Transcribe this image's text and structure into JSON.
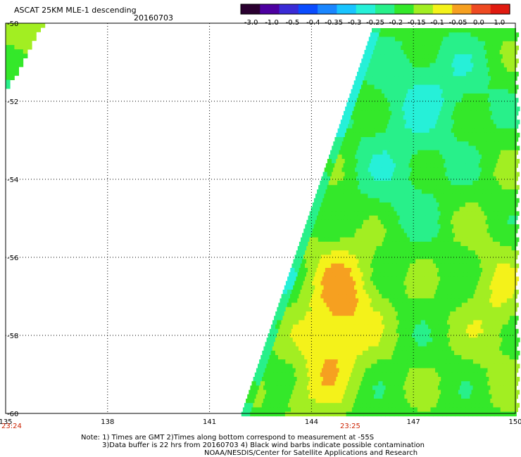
{
  "header": {
    "title": "ASCAT 25KM MLE-1 descending",
    "date": "20160703"
  },
  "colorbar": {
    "labels": [
      "-3.0",
      "-1.0",
      "-0.5",
      "-0.4",
      "-0.35",
      "-0.3",
      "-0.25",
      "-0.2",
      "-0.15",
      "-0.1",
      "-0.05",
      "0.0",
      "1.0"
    ],
    "colors": [
      "#2a0030",
      "#4d00a0",
      "#3a2bd6",
      "#0a4cff",
      "#1a86ff",
      "#19c4ff",
      "#26f0d8",
      "#28f08a",
      "#34e82a",
      "#a2ee22",
      "#f4f21a",
      "#f6a020",
      "#ee4a22",
      "#e01a10"
    ]
  },
  "map": {
    "lon_range": [
      135,
      150
    ],
    "lat_range": [
      -60,
      -50
    ],
    "lon_ticks": [
      "135",
      "138",
      "141",
      "144",
      "147",
      "150"
    ],
    "lat_ticks": [
      "-50",
      "-52",
      "-54",
      "-56",
      "-58",
      "-60"
    ],
    "grid": true
  },
  "times": {
    "left": "23:24",
    "center": "23:25"
  },
  "notes": {
    "line1": "Note: 1) Times are GMT 2)Times along bottom correspond to measurement at -55S",
    "line2": "3)Data buffer is 22 hrs from 20160703 4) Black wind barbs indicate possible contamination",
    "line3": "NOAA/NESDIS/Center for Satellite Applications and Research"
  }
}
